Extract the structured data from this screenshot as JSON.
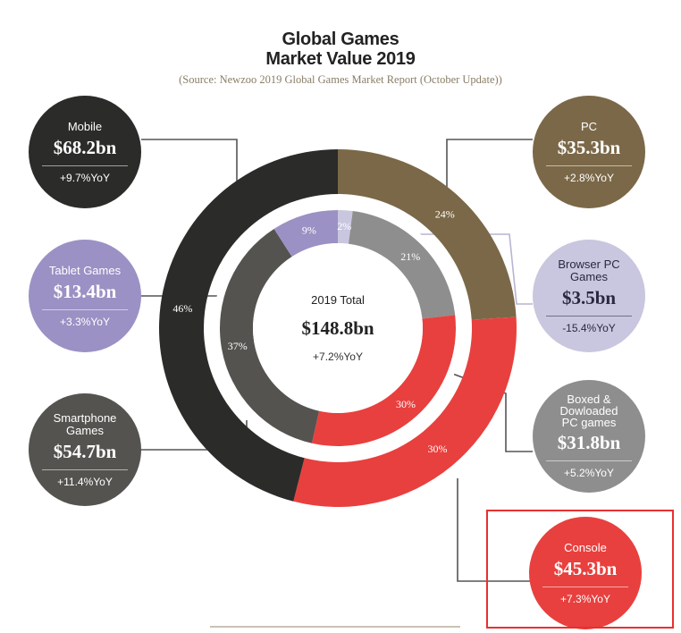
{
  "header": {
    "title_line1": "Global Games",
    "title_line2": "Market Value 2019",
    "source": "(Source: Newzoo 2019 Global Games Market Report (October Update))"
  },
  "center": {
    "label": "2019 Total",
    "value": "$148.8bn",
    "change": "+7.2%YoY"
  },
  "bubbles": [
    {
      "id": "mobile",
      "name": "Mobile",
      "value": "$68.2bn",
      "change": "+9.7%YoY",
      "color": "#2b2b29"
    },
    {
      "id": "tablet",
      "name": "Tablet Games",
      "value": "$13.4bn",
      "change": "+3.3%YoY",
      "color": "#9b91c4"
    },
    {
      "id": "smartphone",
      "name": "Smartphone Games",
      "value": "$54.7bn",
      "change": "+11.4%YoY",
      "color": "#545350"
    },
    {
      "id": "pc",
      "name": "PC",
      "value": "$35.3bn",
      "change": "+2.8%YoY",
      "color": "#7b6848"
    },
    {
      "id": "browser",
      "name": "Browser PC Games",
      "value": "$3.5bn",
      "change": "-15.4%YoY",
      "color": "#c9c6df"
    },
    {
      "id": "boxed",
      "name": "Boxed & Dowloaded PC games",
      "value": "$31.8bn",
      "change": "+5.2%YoY",
      "color": "#8e8e8e"
    },
    {
      "id": "console",
      "name": "Console",
      "value": "$45.3bn",
      "change": "+7.3%YoY",
      "color": "#e8403e"
    }
  ],
  "chart_data": {
    "type": "pie",
    "total": 148.8,
    "outer_ring": [
      {
        "name": "PC",
        "value": 24,
        "label": "24%",
        "color": "#7b6848"
      },
      {
        "name": "Console",
        "value": 30,
        "label": "30%",
        "color": "#e8403e"
      },
      {
        "name": "Mobile",
        "value": 46,
        "label": "46%",
        "color": "#2b2b29"
      }
    ],
    "inner_ring": [
      {
        "name": "Browser PC Games",
        "value": 2,
        "label": "2%",
        "color": "#c9c6df"
      },
      {
        "name": "Boxed & Dowloaded PC games",
        "value": 21,
        "label": "21%",
        "color": "#8e8e8e"
      },
      {
        "name": "Console",
        "value": 30,
        "label": "30%",
        "color": "#e8403e"
      },
      {
        "name": "Smartphone Games",
        "value": 37,
        "label": "37%",
        "color": "#545350"
      },
      {
        "name": "Tablet Games",
        "value": 9,
        "label": "9%",
        "color": "#9b91c4"
      }
    ]
  }
}
